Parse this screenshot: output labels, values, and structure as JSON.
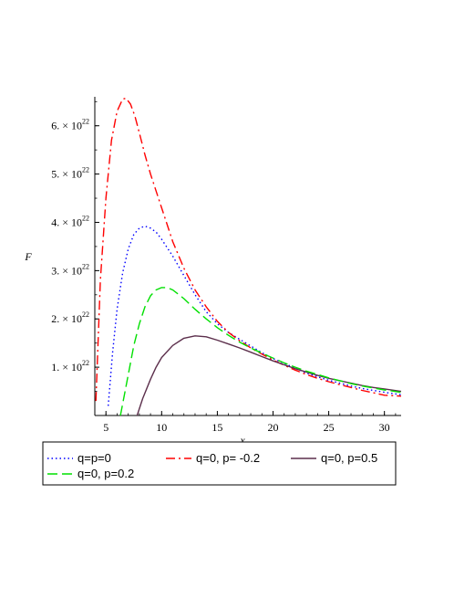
{
  "chart_data": {
    "type": "line",
    "title": "",
    "xlabel": "x",
    "ylabel": "F",
    "xlim": [
      4,
      31.5
    ],
    "ylim": [
      0,
      6.6e+22
    ],
    "grid": false,
    "legend_placement": "bottom",
    "x_ticks": [
      {
        "value": 5,
        "label": "5"
      },
      {
        "value": 10,
        "label": "10"
      },
      {
        "value": 15,
        "label": "15"
      },
      {
        "value": 20,
        "label": "20"
      },
      {
        "value": 25,
        "label": "25"
      },
      {
        "value": 30,
        "label": "30"
      }
    ],
    "y_ticks": [
      {
        "value": 1e+22,
        "mantissa": "1.",
        "times": "×",
        "base": "10",
        "exponent": "22"
      },
      {
        "value": 2e+22,
        "mantissa": "2.",
        "times": "×",
        "base": "10",
        "exponent": "22"
      },
      {
        "value": 3e+22,
        "mantissa": "3.",
        "times": "×",
        "base": "10",
        "exponent": "22"
      },
      {
        "value": 4e+22,
        "mantissa": "4.",
        "times": "×",
        "base": "10",
        "exponent": "22"
      },
      {
        "value": 5e+22,
        "mantissa": "5.",
        "times": "×",
        "base": "10",
        "exponent": "22"
      },
      {
        "value": 6e+22,
        "mantissa": "6.",
        "times": "×",
        "base": "10",
        "exponent": "22"
      }
    ],
    "series": [
      {
        "name": "q=p=0",
        "color": "#0000ff",
        "dash": "dotted",
        "x": [
          5.2,
          5.6,
          6,
          6.5,
          7,
          7.5,
          8,
          8.5,
          9,
          9.5,
          10,
          11,
          12,
          13,
          14,
          15,
          16,
          17,
          18,
          19,
          20,
          21,
          22,
          23,
          24,
          25,
          26,
          27,
          28,
          29,
          30,
          31.5
        ],
        "y": [
          2e+21,
          1.3e+22,
          2.2e+22,
          2.95e+22,
          3.45e+22,
          3.75e+22,
          3.88e+22,
          3.92e+22,
          3.88e+22,
          3.8e+22,
          3.65e+22,
          3.3e+22,
          2.9e+22,
          2.5e+22,
          2.15e+22,
          1.9e+22,
          1.72e+22,
          1.58e+22,
          1.44e+22,
          1.3e+22,
          1.18e+22,
          1.08e+22,
          9.8e+21,
          8.8e+21,
          8e+21,
          7.3e+21,
          6.7e+21,
          6.1e+21,
          5.6e+21,
          5.2e+21,
          4.8e+21,
          4.3e+21
        ]
      },
      {
        "name": "q=0, p= -0.2",
        "color": "#ff0000",
        "dash": "dashdot",
        "x": [
          4.1,
          4.5,
          5,
          5.5,
          6,
          6.5,
          6.8,
          7.2,
          7.6,
          8,
          8.5,
          9,
          10,
          11,
          12,
          13,
          14,
          15,
          16,
          17,
          18,
          19,
          20,
          21,
          22,
          23,
          24,
          25,
          26,
          27,
          28,
          29,
          30,
          31.5
        ],
        "y": [
          3e+21,
          2.8e+22,
          4.5e+22,
          5.7e+22,
          6.3e+22,
          6.55e+22,
          6.57e+22,
          6.45e+22,
          6.2e+22,
          5.85e+22,
          5.4e+22,
          5e+22,
          4.3e+22,
          3.6e+22,
          3.05e+22,
          2.6e+22,
          2.25e+22,
          1.95e+22,
          1.72e+22,
          1.55e+22,
          1.4e+22,
          1.27e+22,
          1.15e+22,
          1.04e+22,
          9.4e+21,
          8.5e+21,
          7.7e+21,
          7e+21,
          6.4e+21,
          5.8e+21,
          5.2e+21,
          4.7e+21,
          4.2e+21,
          4e+21
        ]
      },
      {
        "name": "q=0, p=0.5",
        "color": "#5c2f4c",
        "dash": "solid",
        "x": [
          7.8,
          8.3,
          9,
          9.5,
          10,
          11,
          12,
          13,
          14,
          15,
          16,
          17,
          18,
          19,
          20,
          21,
          22,
          23,
          24,
          25,
          26,
          27,
          28,
          29,
          30,
          31.5
        ],
        "y": [
          0.0,
          3.5e+21,
          7.5e+21,
          1e+22,
          1.2e+22,
          1.45e+22,
          1.6e+22,
          1.65e+22,
          1.63e+22,
          1.56e+22,
          1.48e+22,
          1.4e+22,
          1.31e+22,
          1.22e+22,
          1.13e+22,
          1.05e+22,
          9.7e+21,
          9e+21,
          8.3e+21,
          7.7e+21,
          7.2e+21,
          6.7e+21,
          6.2e+21,
          5.8e+21,
          5.5e+21,
          5e+21
        ]
      },
      {
        "name": "q=0, p=0.2",
        "color": "#00e000",
        "dash": "dashed",
        "x": [
          6.3,
          6.8,
          7.5,
          8,
          8.5,
          9,
          9.5,
          10,
          10.5,
          11,
          12,
          13,
          14,
          15,
          16,
          17,
          18,
          19,
          20,
          21,
          22,
          23,
          24,
          25,
          26,
          27,
          28,
          29,
          30,
          31.5
        ],
        "y": [
          0.0,
          6e+21,
          1.45e+22,
          1.9e+22,
          2.25e+22,
          2.48e+22,
          2.6e+22,
          2.65e+22,
          2.65e+22,
          2.6e+22,
          2.42e+22,
          2.2e+22,
          2e+22,
          1.82e+22,
          1.66e+22,
          1.52e+22,
          1.4e+22,
          1.29e+22,
          1.19e+22,
          1.09e+22,
          1e+22,
          9.2e+21,
          8.5e+21,
          7.8e+21,
          7.2e+21,
          6.6e+21,
          6.1e+21,
          5.7e+21,
          5.3e+21,
          4.8e+21
        ]
      }
    ]
  }
}
